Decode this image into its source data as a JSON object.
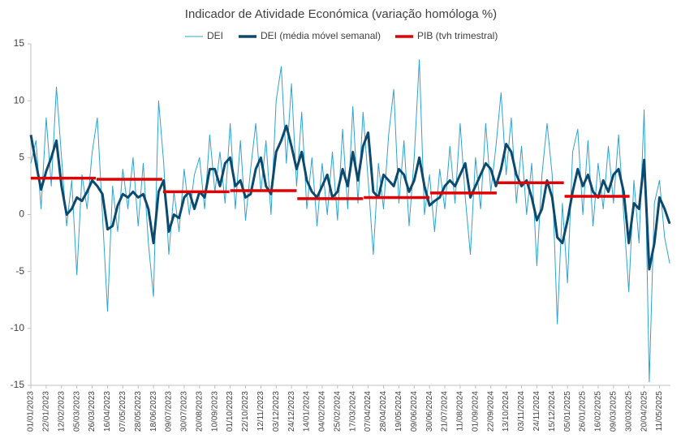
{
  "chart_data": {
    "type": "line",
    "title": "Indicador de Atividade Económica (variação homóloga %)",
    "x": [
      "01/01/2023",
      "08/01/2023",
      "15/01/2023",
      "22/01/2023",
      "29/01/2023",
      "05/02/2023",
      "12/02/2023",
      "19/02/2023",
      "26/02/2023",
      "05/03/2023",
      "12/03/2023",
      "19/03/2023",
      "26/03/2023",
      "02/04/2023",
      "09/04/2023",
      "16/04/2023",
      "23/04/2023",
      "30/04/2023",
      "07/05/2023",
      "14/05/2023",
      "21/05/2023",
      "28/05/2023",
      "04/06/2023",
      "11/06/2023",
      "18/06/2023",
      "25/06/2023",
      "02/07/2023",
      "09/07/2023",
      "16/07/2023",
      "23/07/2023",
      "30/07/2023",
      "06/08/2023",
      "13/08/2023",
      "20/08/2023",
      "27/08/2023",
      "03/09/2023",
      "10/09/2023",
      "17/09/2023",
      "24/09/2023",
      "01/10/2023",
      "08/10/2023",
      "15/10/2023",
      "22/10/2023",
      "29/10/2023",
      "05/11/2023",
      "12/11/2023",
      "19/11/2023",
      "26/11/2023",
      "03/12/2023",
      "10/12/2023",
      "17/12/2023",
      "24/12/2023",
      "31/12/2023",
      "07/01/2024",
      "14/01/2024",
      "21/01/2024",
      "28/01/2024",
      "04/02/2024",
      "11/02/2024",
      "18/02/2024",
      "25/02/2024",
      "03/03/2024",
      "10/03/2024",
      "17/03/2024",
      "24/03/2024",
      "31/03/2024",
      "07/04/2024",
      "14/04/2024",
      "21/04/2024",
      "28/04/2024",
      "05/05/2024",
      "12/05/2024",
      "19/05/2024",
      "26/05/2024",
      "02/06/2024",
      "09/06/2024",
      "16/06/2024",
      "23/06/2024",
      "30/06/2024",
      "07/07/2024",
      "14/07/2024",
      "21/07/2024",
      "28/07/2024",
      "04/08/2024",
      "11/08/2024",
      "18/08/2024",
      "25/08/2024",
      "01/09/2024",
      "08/09/2024",
      "15/09/2024",
      "22/09/2024",
      "29/09/2024",
      "06/10/2024",
      "13/10/2024",
      "20/10/2024",
      "27/10/2024",
      "03/11/2024",
      "10/11/2024",
      "17/11/2024",
      "24/11/2024",
      "01/12/2024",
      "08/12/2024",
      "15/12/2024",
      "22/12/2024",
      "29/12/2024",
      "05/01/2025",
      "12/01/2025",
      "19/01/2025",
      "26/01/2025",
      "02/02/2025",
      "09/02/2025",
      "16/02/2025",
      "23/02/2025",
      "02/03/2025",
      "09/03/2025",
      "16/03/2025",
      "23/03/2025",
      "30/03/2025",
      "06/04/2025",
      "13/04/2025",
      "20/04/2025",
      "27/04/2025",
      "04/05/2025",
      "11/05/2025",
      "18/05/2025",
      "25/05/2025"
    ],
    "series": [
      {
        "name": "DEI",
        "color": "#2ea3d2",
        "width": 1,
        "values": [
          4.5,
          6.5,
          0.5,
          8.5,
          2.5,
          11.2,
          5.0,
          -1.0,
          3.0,
          -5.3,
          3.5,
          0.5,
          5.5,
          8.5,
          0.0,
          -8.5,
          2.5,
          -1.5,
          4.0,
          0.5,
          5.0,
          -1.0,
          4.5,
          -2.5,
          -7.2,
          10.0,
          4.5,
          -3.5,
          2.0,
          -1.5,
          4.0,
          0.0,
          3.5,
          5.0,
          0.5,
          7.0,
          2.0,
          5.5,
          1.0,
          8.0,
          0.5,
          6.5,
          -0.5,
          4.0,
          8.0,
          2.0,
          6.5,
          0.0,
          10.0,
          13.0,
          4.5,
          11.5,
          2.5,
          9.0,
          0.5,
          5.0,
          -1.0,
          4.5,
          0.0,
          5.5,
          -0.5,
          7.5,
          0.5,
          9.5,
          1.0,
          9.0,
          3.0,
          -3.5,
          4.5,
          0.5,
          7.0,
          11.0,
          1.0,
          6.5,
          -1.0,
          5.0,
          13.6,
          0.0,
          3.5,
          -1.5,
          4.0,
          0.5,
          6.0,
          1.0,
          8.0,
          1.5,
          -3.5,
          5.0,
          0.5,
          8.0,
          2.0,
          6.0,
          10.7,
          3.5,
          8.5,
          1.0,
          6.0,
          0.0,
          4.5,
          -4.5,
          3.5,
          8.0,
          3.5,
          -9.6,
          1.0,
          -6.0,
          5.5,
          7.5,
          0.0,
          6.5,
          -1.0,
          4.5,
          0.5,
          6.0,
          1.0,
          7.0,
          0.0,
          -6.8,
          3.0,
          -2.5,
          9.2,
          -14.7,
          1.0,
          3.0,
          -2.0,
          -4.3
        ]
      },
      {
        "name": "DEI (média móvel semanal)",
        "color": "#0b4a6e",
        "width": 3,
        "values": [
          7.0,
          4.5,
          2.2,
          3.8,
          5.0,
          6.5,
          2.5,
          0.0,
          0.5,
          1.5,
          1.2,
          2.0,
          3.0,
          2.5,
          1.8,
          -1.3,
          -1.0,
          0.8,
          1.8,
          1.5,
          2.0,
          1.5,
          1.8,
          0.5,
          -2.5,
          2.0,
          3.0,
          -1.5,
          0.0,
          -0.3,
          1.5,
          2.0,
          0.5,
          2.0,
          1.5,
          4.0,
          4.0,
          2.5,
          4.5,
          5.0,
          2.5,
          3.0,
          1.5,
          1.8,
          4.0,
          5.0,
          2.5,
          1.8,
          5.5,
          6.5,
          7.8,
          6.0,
          4.0,
          5.5,
          3.0,
          2.0,
          1.5,
          2.5,
          3.5,
          1.5,
          2.0,
          4.0,
          2.5,
          5.5,
          3.0,
          6.0,
          7.2,
          2.0,
          1.5,
          3.5,
          3.0,
          2.5,
          4.0,
          3.5,
          2.0,
          3.0,
          5.0,
          2.5,
          0.8,
          1.2,
          1.5,
          2.5,
          3.0,
          2.5,
          3.5,
          4.5,
          1.5,
          2.5,
          3.5,
          4.5,
          4.0,
          2.5,
          4.0,
          6.2,
          5.5,
          3.5,
          2.5,
          3.0,
          1.5,
          -0.5,
          0.5,
          3.0,
          1.5,
          -2.0,
          -2.5,
          -0.5,
          2.0,
          4.0,
          2.5,
          3.5,
          2.0,
          1.5,
          3.0,
          2.0,
          3.5,
          4.0,
          2.0,
          -2.5,
          1.0,
          0.5,
          4.8,
          -4.8,
          -2.5,
          1.5,
          0.5,
          -0.8
        ]
      }
    ],
    "pib": {
      "name": "PIB (tvh trimestral)",
      "color": "#e00000",
      "x": [
        [
          "01/01/2023",
          "31/03/2023"
        ],
        [
          "01/04/2023",
          "30/06/2023"
        ],
        [
          "01/07/2023",
          "30/09/2023"
        ],
        [
          "01/10/2023",
          "31/12/2023"
        ],
        [
          "01/01/2024",
          "31/03/2024"
        ],
        [
          "01/04/2024",
          "30/06/2024"
        ],
        [
          "01/07/2024",
          "30/09/2024"
        ],
        [
          "01/10/2024",
          "31/12/2024"
        ],
        [
          "01/01/2025",
          "31/03/2025"
        ]
      ],
      "values": [
        3.2,
        3.1,
        2.0,
        2.1,
        1.4,
        1.5,
        1.9,
        2.8,
        1.6
      ]
    },
    "xlim": [
      "01/01/2023",
      "26/05/2025"
    ],
    "xticks": [
      "01/01/2023",
      "22/01/2023",
      "12/02/2023",
      "05/03/2023",
      "26/03/2023",
      "16/04/2023",
      "07/05/2023",
      "28/05/2023",
      "18/06/2023",
      "09/07/2023",
      "30/07/2023",
      "20/08/2023",
      "10/09/2023",
      "01/10/2023",
      "22/10/2023",
      "12/11/2023",
      "03/12/2023",
      "24/12/2023",
      "14/01/2024",
      "04/02/2024",
      "25/02/2024",
      "17/03/2024",
      "07/04/2024",
      "28/04/2024",
      "19/05/2024",
      "09/06/2024",
      "30/06/2024",
      "21/07/2024",
      "11/08/2024",
      "01/09/2024",
      "22/09/2024",
      "13/10/2024",
      "03/11/2024",
      "24/11/2024",
      "15/12/2024",
      "05/01/2025",
      "26/01/2025",
      "16/02/2025",
      "09/03/2025",
      "30/03/2025",
      "20/04/2025",
      "11/05/2025"
    ],
    "ylim": [
      -15,
      15
    ],
    "yticks": [
      -15,
      -10,
      -5,
      0,
      5,
      10,
      15
    ]
  }
}
